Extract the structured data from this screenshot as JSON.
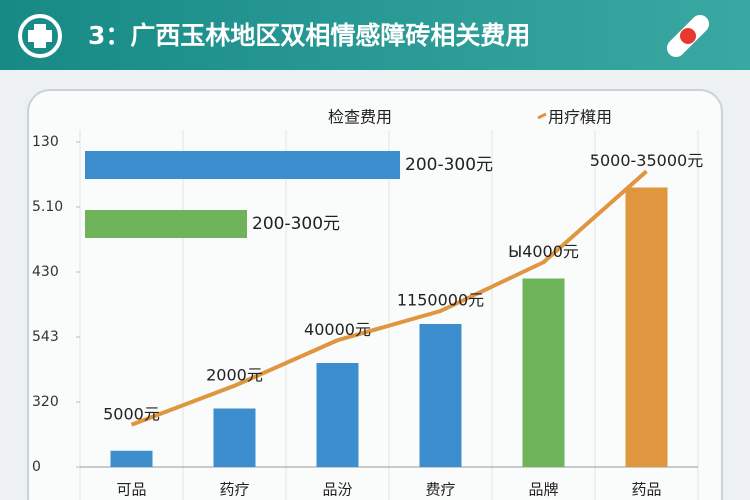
{
  "header": {
    "title": "3：广西玉林地区双相情感障砖相关费用"
  },
  "chart_data": {
    "type": "bar",
    "categories": [
      "可品",
      "药疗",
      "品汾",
      "费疗",
      "品牌",
      "药品"
    ],
    "series": [
      {
        "name": "检查费用",
        "type": "bar",
        "colors": [
          "#3d8ecf",
          "#3d8ecf",
          "#3d8ecf",
          "#3d8ecf",
          "#6fb45a",
          "#e0953f"
        ],
        "values": [
          0.25,
          0.9,
          1.6,
          2.2,
          2.9,
          4.3
        ]
      },
      {
        "name": "用疗檱用",
        "type": "line",
        "color": "#e0953f",
        "values": [
          0.65,
          1.25,
          1.95,
          2.4,
          3.15,
          4.55
        ]
      }
    ],
    "annotations": [
      "5000元",
      "2000元",
      "40000元",
      "1150000元",
      "Ы4000元",
      "5000-35000元"
    ],
    "bar_notes": [
      {
        "text": "200-300元",
        "color": "#3d8ecf"
      },
      {
        "text": "200-300元",
        "color": "#6fb45a"
      }
    ],
    "ylim": [
      0,
      5.3
    ],
    "yticks": [
      0,
      {
        "value": 1,
        "label": "320"
      },
      {
        "value": 2,
        "label": "543"
      },
      {
        "value": 3,
        "label": "430"
      },
      {
        "value": 4,
        "label": "5.10"
      },
      {
        "value": 5,
        "label": "130"
      }
    ]
  }
}
